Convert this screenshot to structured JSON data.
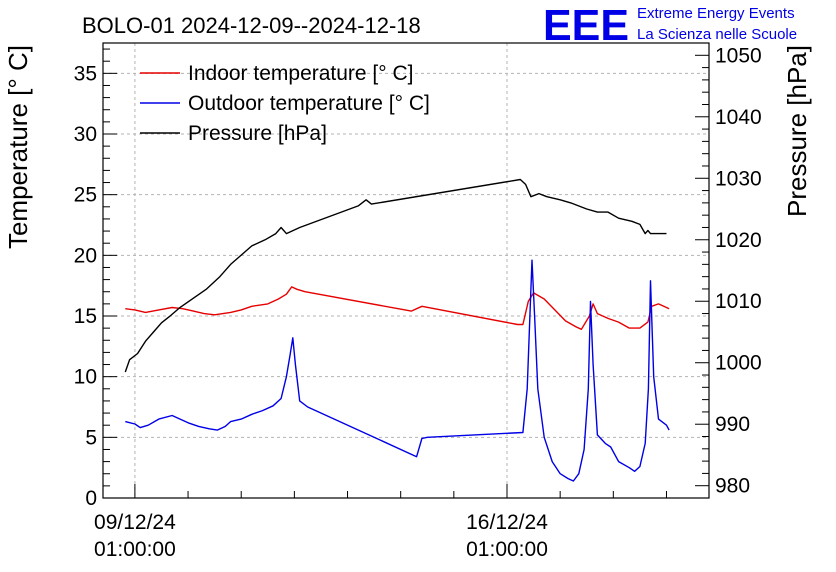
{
  "chart_data": {
    "type": "line",
    "title": "BOLO-01 2024-12-09--2024-12-18",
    "branding": {
      "logo": "EEE",
      "line1": "Extreme Energy Events",
      "line2": "La Scienza nelle Scuole",
      "color": "#0000e6"
    },
    "x_axis": {
      "unit": "days since 2024-12-09 01:00",
      "range": [
        -0.6,
        10.8
      ],
      "major_ticks": [
        {
          "value": 0,
          "date": "09/12/24",
          "time": "01:00:00"
        },
        {
          "value": 7,
          "date": "16/12/24",
          "time": "01:00:00"
        }
      ]
    },
    "y_left": {
      "label": "Temperature [° C]",
      "range": [
        0,
        37.5
      ],
      "ticks": [
        "0",
        "5",
        "10",
        "15",
        "20",
        "25",
        "30",
        "35"
      ]
    },
    "y_right": {
      "label": "Pressure [hPa]",
      "range": [
        978,
        1052
      ],
      "ticks": [
        "980",
        "990",
        "1000",
        "1010",
        "1020",
        "1030",
        "1040",
        "1050"
      ]
    },
    "grid": true,
    "legend": [
      "Indoor temperature [° C]",
      "Outdoor temperature [° C]",
      "Pressure [hPa]"
    ],
    "series": [
      {
        "name": "Indoor temperature [° C]",
        "axis": "left",
        "color": "#e60000",
        "points": [
          [
            -0.18,
            15.6
          ],
          [
            0.0,
            15.5
          ],
          [
            0.2,
            15.3
          ],
          [
            0.45,
            15.5
          ],
          [
            0.7,
            15.7
          ],
          [
            0.9,
            15.6
          ],
          [
            1.1,
            15.4
          ],
          [
            1.3,
            15.2
          ],
          [
            1.5,
            15.1
          ],
          [
            1.8,
            15.3
          ],
          [
            2.0,
            15.5
          ],
          [
            2.2,
            15.8
          ],
          [
            2.5,
            16.0
          ],
          [
            2.7,
            16.4
          ],
          [
            2.85,
            16.8
          ],
          [
            2.95,
            17.4
          ],
          [
            3.05,
            17.2
          ],
          [
            3.2,
            17.0
          ],
          [
            5.2,
            15.4
          ],
          [
            5.4,
            15.8
          ],
          [
            7.2,
            14.3
          ],
          [
            7.3,
            14.3
          ],
          [
            7.4,
            16.2
          ],
          [
            7.5,
            16.9
          ],
          [
            7.7,
            16.4
          ],
          [
            7.9,
            15.5
          ],
          [
            8.1,
            14.6
          ],
          [
            8.3,
            14.1
          ],
          [
            8.4,
            13.9
          ],
          [
            8.55,
            15.0
          ],
          [
            8.62,
            16.0
          ],
          [
            8.7,
            15.2
          ],
          [
            8.9,
            14.8
          ],
          [
            9.1,
            14.5
          ],
          [
            9.3,
            14.0
          ],
          [
            9.5,
            14.0
          ],
          [
            9.65,
            14.5
          ],
          [
            9.72,
            15.8
          ],
          [
            9.85,
            16.0
          ],
          [
            10.0,
            15.7
          ],
          [
            10.05,
            15.6
          ]
        ]
      },
      {
        "name": "Outdoor temperature [° C]",
        "axis": "left",
        "color": "#0000e6",
        "points": [
          [
            -0.18,
            6.3
          ],
          [
            0.0,
            6.1
          ],
          [
            0.1,
            5.8
          ],
          [
            0.25,
            6.0
          ],
          [
            0.45,
            6.5
          ],
          [
            0.7,
            6.8
          ],
          [
            0.85,
            6.5
          ],
          [
            1.0,
            6.2
          ],
          [
            1.2,
            5.9
          ],
          [
            1.4,
            5.7
          ],
          [
            1.55,
            5.6
          ],
          [
            1.7,
            5.9
          ],
          [
            1.8,
            6.3
          ],
          [
            2.0,
            6.5
          ],
          [
            2.2,
            6.9
          ],
          [
            2.4,
            7.2
          ],
          [
            2.6,
            7.6
          ],
          [
            2.75,
            8.2
          ],
          [
            2.85,
            10.0
          ],
          [
            2.92,
            11.8
          ],
          [
            2.97,
            13.2
          ],
          [
            3.02,
            11.0
          ],
          [
            3.1,
            8.0
          ],
          [
            3.25,
            7.5
          ],
          [
            5.3,
            3.4
          ],
          [
            5.4,
            4.9
          ],
          [
            5.5,
            5.0
          ],
          [
            7.3,
            5.4
          ],
          [
            7.38,
            9.0
          ],
          [
            7.43,
            15.0
          ],
          [
            7.47,
            19.6
          ],
          [
            7.52,
            15.0
          ],
          [
            7.58,
            9.0
          ],
          [
            7.7,
            5.0
          ],
          [
            7.85,
            3.0
          ],
          [
            8.0,
            2.0
          ],
          [
            8.15,
            1.6
          ],
          [
            8.25,
            1.4
          ],
          [
            8.35,
            2.0
          ],
          [
            8.45,
            4.0
          ],
          [
            8.53,
            9.0
          ],
          [
            8.57,
            16.2
          ],
          [
            8.62,
            11.0
          ],
          [
            8.7,
            5.2
          ],
          [
            8.85,
            4.5
          ],
          [
            8.95,
            4.2
          ],
          [
            9.1,
            3.0
          ],
          [
            9.3,
            2.5
          ],
          [
            9.4,
            2.2
          ],
          [
            9.5,
            2.6
          ],
          [
            9.6,
            4.5
          ],
          [
            9.66,
            9.0
          ],
          [
            9.7,
            17.9
          ],
          [
            9.76,
            10.0
          ],
          [
            9.85,
            6.5
          ],
          [
            10.0,
            6.0
          ],
          [
            10.05,
            5.6
          ]
        ]
      },
      {
        "name": "Pressure [hPa]",
        "axis": "right",
        "color": "#000000",
        "points": [
          [
            -0.18,
            998.5
          ],
          [
            -0.1,
            1000.5
          ],
          [
            0.05,
            1001.5
          ],
          [
            0.2,
            1003.5
          ],
          [
            0.35,
            1005.0
          ],
          [
            0.5,
            1006.5
          ],
          [
            0.65,
            1007.5
          ],
          [
            0.85,
            1009.0
          ],
          [
            1.1,
            1010.5
          ],
          [
            1.35,
            1012.0
          ],
          [
            1.6,
            1014.0
          ],
          [
            1.8,
            1016.0
          ],
          [
            2.0,
            1017.5
          ],
          [
            2.2,
            1019.0
          ],
          [
            2.45,
            1020.0
          ],
          [
            2.65,
            1021.0
          ],
          [
            2.75,
            1022.0
          ],
          [
            2.85,
            1021.0
          ],
          [
            3.1,
            1022.0
          ],
          [
            4.2,
            1025.5
          ],
          [
            4.35,
            1026.5
          ],
          [
            4.45,
            1025.8
          ],
          [
            7.25,
            1029.8
          ],
          [
            7.35,
            1029.0
          ],
          [
            7.45,
            1027.0
          ],
          [
            7.6,
            1027.5
          ],
          [
            7.75,
            1027.0
          ],
          [
            8.0,
            1026.5
          ],
          [
            8.2,
            1026.0
          ],
          [
            8.5,
            1025.0
          ],
          [
            8.7,
            1024.5
          ],
          [
            8.9,
            1024.5
          ],
          [
            9.1,
            1023.5
          ],
          [
            9.35,
            1023.0
          ],
          [
            9.5,
            1022.5
          ],
          [
            9.6,
            1021.0
          ],
          [
            9.65,
            1021.5
          ],
          [
            9.7,
            1021.0
          ],
          [
            9.85,
            1021.0
          ],
          [
            10.0,
            1021.0
          ]
        ]
      }
    ]
  }
}
